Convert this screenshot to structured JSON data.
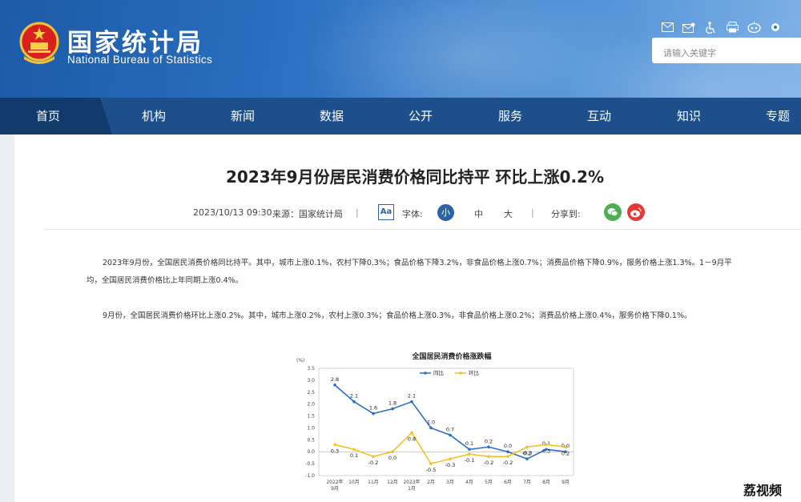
{
  "header": {
    "logo_cn": "国家统计局",
    "logo_en": "National Bureau of Statistics",
    "tools": [
      "envelope-icon",
      "mail-icon",
      "accessibility-icon",
      "print-icon",
      "robot-icon",
      "toggle-icon"
    ],
    "search_placeholder": "请输入关键字"
  },
  "nav": {
    "items": [
      "首页",
      "机构",
      "新闻",
      "数据",
      "公开",
      "服务",
      "互动",
      "知识",
      "专题"
    ]
  },
  "article": {
    "title": "2023年9月份居民消费价格同比持平 环比上涨0.2%",
    "date": "2023/10/13 09:30",
    "source": "来源：国家统计局",
    "sep": "|",
    "aa": "Aa",
    "font_label": "字体:",
    "size_small": "小",
    "size_medium": "中",
    "size_large": "大",
    "share_label": "分享到:",
    "para1_line1": "2023年9月份，全国居民消费价格同比持平。其中，城市上涨0.1%，农村下降0.3%；食品价格下降3.2%，非食品价格上涨0.7%；消费品价格下降0.9%，服务价格上涨1.3%。1－9月平",
    "para1_line2": "均，全国居民消费价格比上年同期上涨0.4%。",
    "para2": "9月份，全国居民消费价格环比上涨0.2%。其中，城市上涨0.2%，农村上涨0.3%；食品价格上涨0.3%，非食品价格上涨0.2%；消费品价格上涨0.4%，服务价格下降0.1%。"
  },
  "watermark": "荔视频",
  "chart_data": {
    "type": "line",
    "title": "全国居民消费价格涨跌幅",
    "unit": "(%)",
    "categories": [
      [
        "2022年",
        "9月"
      ],
      [
        "10月"
      ],
      [
        "11月"
      ],
      [
        "12月"
      ],
      [
        "2023年",
        "1月"
      ],
      [
        "2月"
      ],
      [
        "3月"
      ],
      [
        "4月"
      ],
      [
        "5月"
      ],
      [
        "6月"
      ],
      [
        "7月"
      ],
      [
        "8月"
      ],
      [
        "9月"
      ]
    ],
    "series": [
      {
        "name": "同比",
        "color": "#2a6fc9",
        "values": [
          2.8,
          2.1,
          1.6,
          1.8,
          2.1,
          1.0,
          0.7,
          0.1,
          0.2,
          0.0,
          -0.3,
          0.1,
          0.0
        ]
      },
      {
        "name": "环比",
        "color": "#f5c125",
        "values": [
          0.3,
          0.1,
          -0.2,
          0.0,
          0.8,
          -0.5,
          -0.3,
          -0.1,
          -0.2,
          -0.2,
          0.2,
          0.3,
          0.2
        ]
      }
    ],
    "yticks": [
      "3.5",
      "3.0",
      "2.5",
      "2.0",
      "1.5",
      "1.0",
      "0.5",
      "0.0",
      "-0.5",
      "-1.0"
    ],
    "ylim": [
      -1.0,
      3.5
    ],
    "legend": "top-center",
    "grid": false
  }
}
